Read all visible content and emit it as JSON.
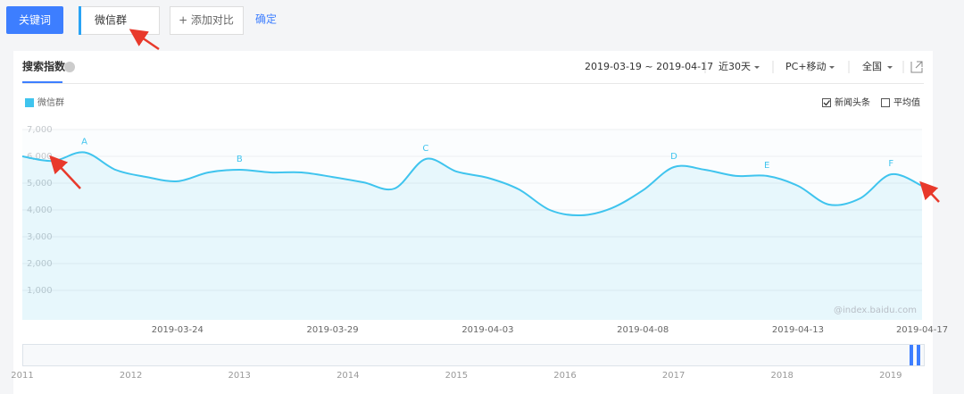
{
  "toolbar": {
    "keyword_button": "关键词",
    "keyword": "微信群",
    "add_compare": "+ 添加对比",
    "confirm": "确定"
  },
  "panel": {
    "tab": "搜索指数",
    "date_range": "2019-03-19 ~ 2019-04-17",
    "period": "近30天",
    "device": "PC+移动",
    "region": "全国",
    "options": [
      {
        "label": "新闻头条",
        "checked": true
      },
      {
        "label": "平均值",
        "checked": false
      }
    ],
    "watermark": "@index.baidu.com"
  },
  "chart_data": {
    "type": "area",
    "categories": [
      null,
      null,
      null,
      null,
      null,
      "2019-03-24",
      null,
      null,
      null,
      null,
      "2019-03-29",
      null,
      null,
      null,
      null,
      "2019-04-03",
      null,
      null,
      null,
      null,
      "2019-04-08",
      null,
      null,
      null,
      null,
      "2019-04-13",
      null,
      null,
      null,
      "2019-04-17"
    ],
    "series": [
      {
        "name": "微信群",
        "color": "#3fc4ee",
        "values": [
          6000,
          5830,
          6150,
          5500,
          5230,
          5070,
          5400,
          5500,
          5400,
          5400,
          5230,
          5030,
          4800,
          5900,
          5430,
          5200,
          4770,
          4000,
          3800,
          4070,
          4730,
          5600,
          5500,
          5270,
          5270,
          4900,
          4200,
          4430,
          5330,
          4900
        ]
      }
    ],
    "ylim": [
      0,
      7000
    ],
    "yticks": [
      {
        "value": 1000,
        "label": "1,000"
      },
      {
        "value": 2000,
        "label": "2,000"
      },
      {
        "value": 3000,
        "label": "3,000"
      },
      {
        "value": 4000,
        "label": "4,000"
      },
      {
        "value": 5000,
        "label": "5,000"
      },
      {
        "value": 6000,
        "label": "6,000"
      },
      {
        "value": 7000,
        "label": "7,000"
      }
    ],
    "grid": true,
    "annotations": [
      "A",
      "B",
      "C",
      "D",
      "E",
      "F"
    ]
  },
  "timeline": {
    "years": [
      "2011",
      "2012",
      "2013",
      "2014",
      "2015",
      "2016",
      "2017",
      "2018",
      "2019"
    ]
  }
}
